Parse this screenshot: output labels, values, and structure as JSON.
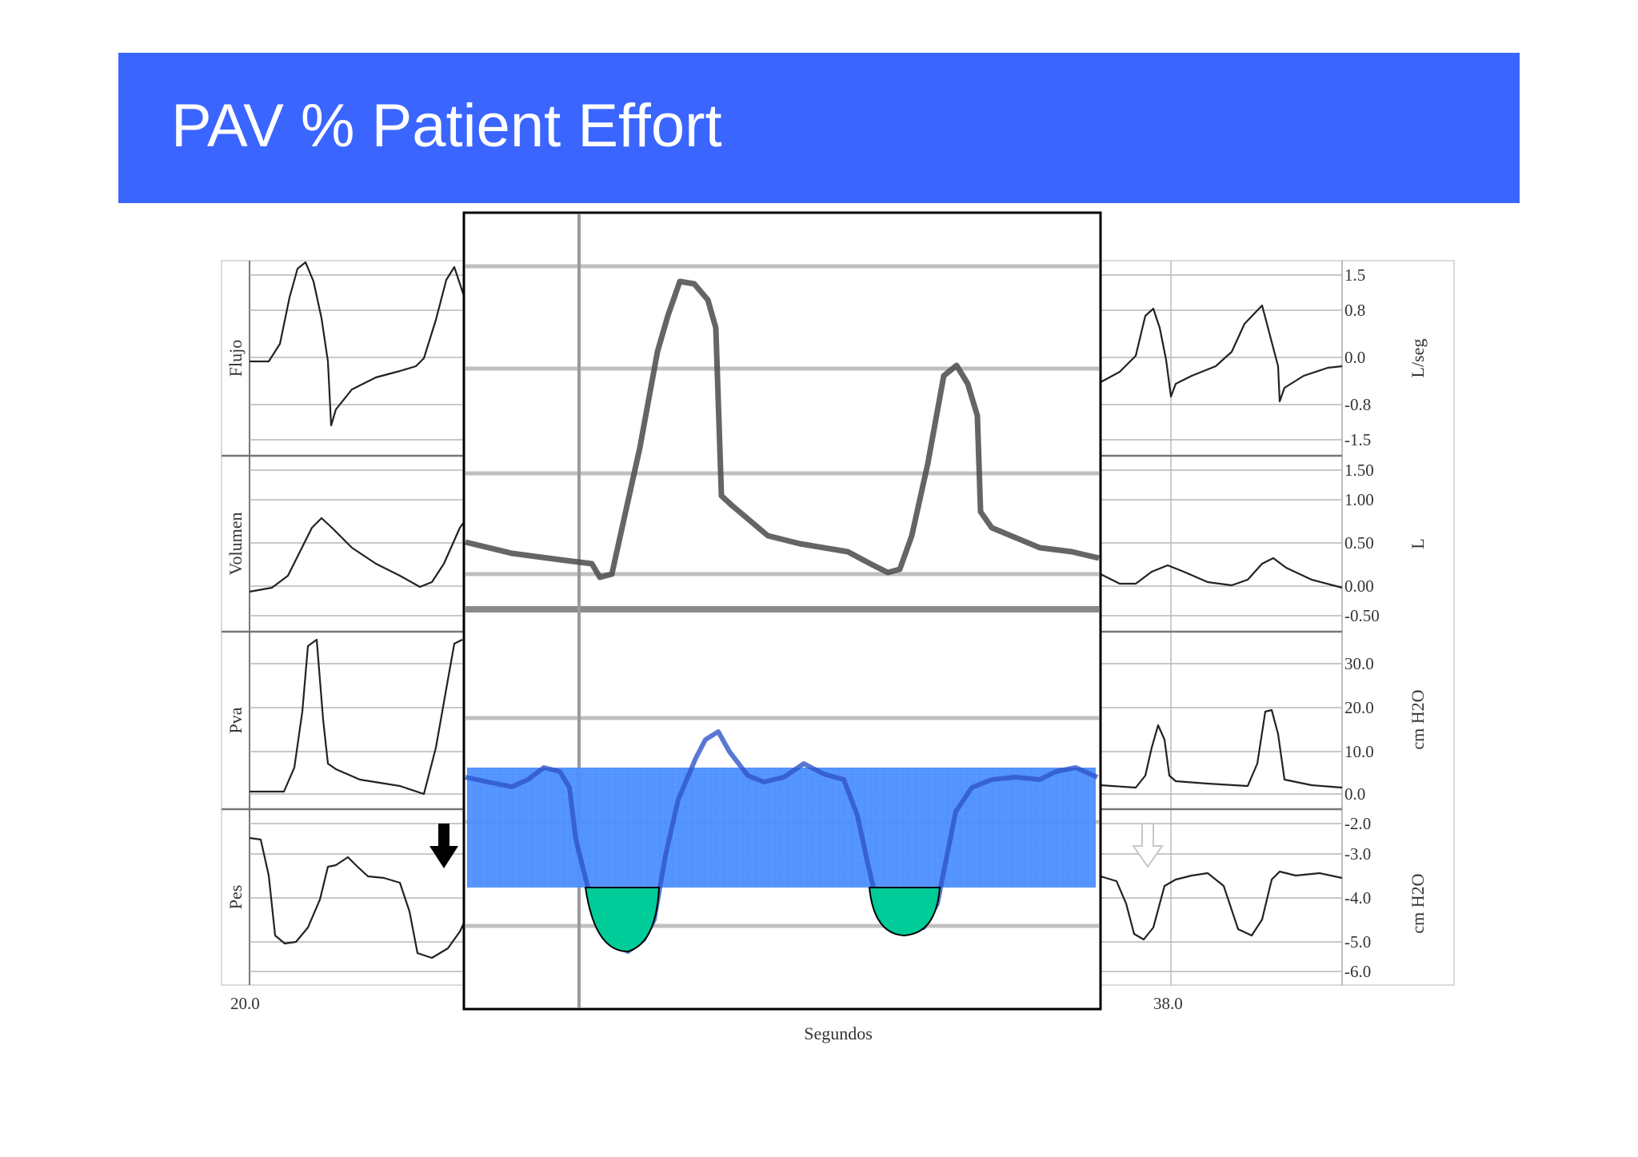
{
  "slide": {
    "title": "PAV % Patient Effort",
    "accent_color": "#3a66ff",
    "highlight_band_color": "#4d90ff",
    "effort_fill_color": "#00cc99"
  },
  "chart_data": {
    "type": "line",
    "title": "",
    "xlabel": "Segundos",
    "x_tick_labels": [
      "20.0",
      "38.0"
    ],
    "panels": [
      {
        "label": "Flujo",
        "unit": "L/seg",
        "tick_labels": [
          "1.5",
          "0.8",
          "0.0",
          "-0.8",
          "-1.5"
        ],
        "ylim": [
          -1.5,
          1.5
        ]
      },
      {
        "label": "Volumen",
        "unit": "L",
        "tick_labels": [
          "1.50",
          "1.00",
          "0.50",
          "0.00",
          "-0.50"
        ],
        "ylim": [
          -0.5,
          1.5
        ]
      },
      {
        "label": "Pva",
        "unit": "cm H2O",
        "tick_labels": [
          "30.0",
          "20.0",
          "10.0",
          "0.0"
        ],
        "ylim": [
          0,
          30
        ]
      },
      {
        "label": "Pes",
        "unit": "cm H2O",
        "tick_labels": [
          "-2.0",
          "-3.0",
          "-4.0",
          "-5.0",
          "-6.0"
        ],
        "ylim": [
          -6,
          -2
        ]
      }
    ],
    "grid": true,
    "legend": "none",
    "annotations": {
      "zoom_box": "enlarged view of Pva and Pes waveforms",
      "highlight_band": "blue shaded band across Pes trace",
      "effort_regions": 2,
      "arrows": [
        "solid black down arrow",
        "hollow grey down arrow"
      ]
    }
  }
}
